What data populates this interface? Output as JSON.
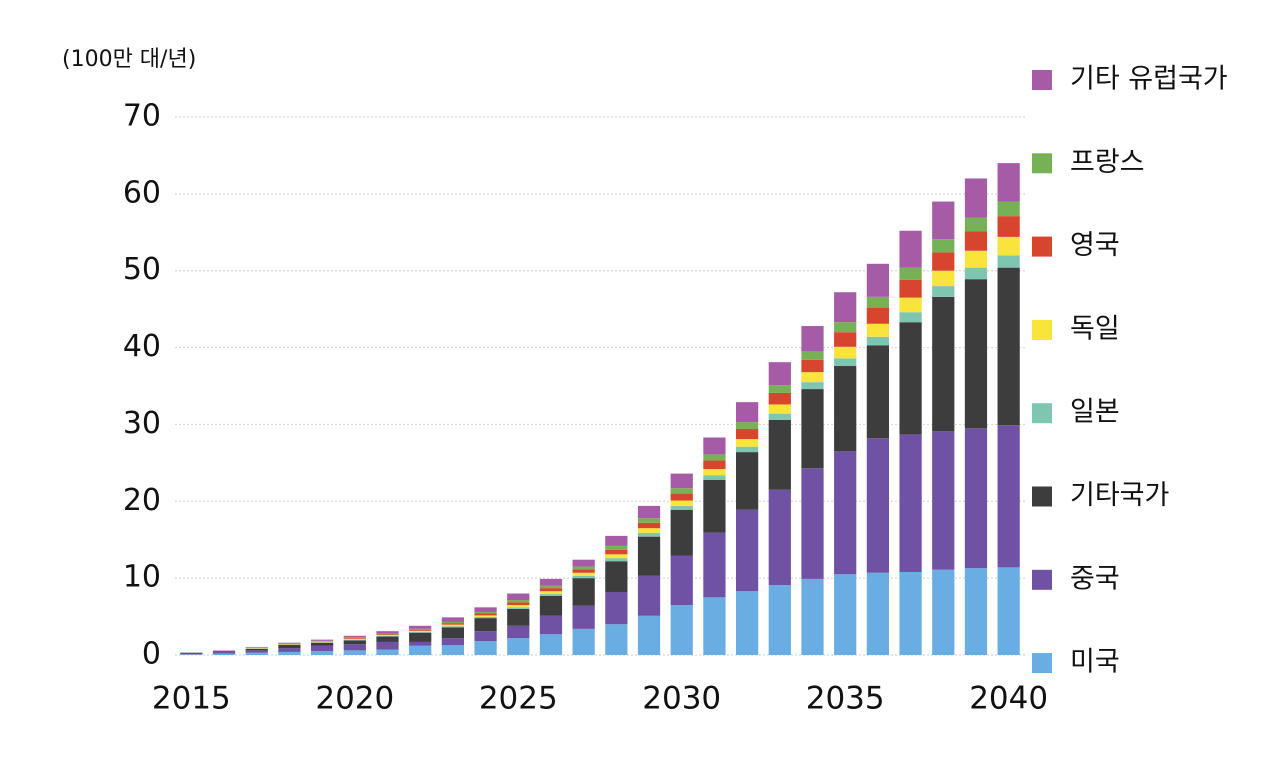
{
  "chart_data": {
    "type": "stacked_bar",
    "y_axis_label": "(100만 대/년)",
    "categories": [
      "2015",
      null,
      null,
      null,
      null,
      "2020",
      null,
      null,
      null,
      null,
      "2025",
      null,
      null,
      null,
      null,
      "2030",
      null,
      null,
      null,
      null,
      "2035",
      null,
      null,
      null,
      null,
      "2040"
    ],
    "series": [
      {
        "name": "미국",
        "color": "#6aade2",
        "values": [
          0.1,
          0.2,
          0.3,
          0.4,
          0.5,
          0.6,
          0.7,
          1.2,
          1.3,
          1.8,
          2.2,
          2.7,
          3.4,
          4.0,
          5.1,
          6.5,
          7.5,
          8.3,
          9.1,
          9.9,
          10.5,
          10.7,
          10.8,
          11.1,
          11.3,
          11.4
        ]
      },
      {
        "name": "중국",
        "color": "#6f52a3",
        "values": [
          0.1,
          0.2,
          0.3,
          0.5,
          0.7,
          0.8,
          1.0,
          0.5,
          0.9,
          1.3,
          1.6,
          2.4,
          3.0,
          4.2,
          5.2,
          6.4,
          8.4,
          10.6,
          12.4,
          14.4,
          16.0,
          17.5,
          17.9,
          18.0,
          18.2,
          18.5
        ]
      },
      {
        "name": "기타국가",
        "color": "#3d3d3d",
        "values": [
          0.1,
          0.1,
          0.2,
          0.4,
          0.4,
          0.5,
          0.7,
          1.2,
          1.4,
          1.7,
          2.2,
          2.6,
          3.6,
          4.0,
          5.1,
          6.0,
          6.9,
          7.5,
          9.1,
          10.3,
          11.1,
          12.1,
          14.6,
          17.5,
          19.4,
          20.5
        ]
      },
      {
        "name": "일본",
        "color": "#7fc6b1",
        "values": [
          0,
          0,
          0.05,
          0.05,
          0.05,
          0.1,
          0.1,
          0.1,
          0.15,
          0.15,
          0.2,
          0.25,
          0.3,
          0.4,
          0.5,
          0.5,
          0.6,
          0.7,
          0.8,
          0.9,
          1.0,
          1.1,
          1.3,
          1.4,
          1.5,
          1.6
        ]
      },
      {
        "name": "독일",
        "color": "#f8e43b",
        "values": [
          0,
          0,
          0.05,
          0.05,
          0.1,
          0.1,
          0.1,
          0.15,
          0.2,
          0.2,
          0.3,
          0.35,
          0.4,
          0.5,
          0.6,
          0.7,
          0.8,
          1.0,
          1.2,
          1.3,
          1.5,
          1.7,
          1.9,
          2.0,
          2.2,
          2.4
        ]
      },
      {
        "name": "영국",
        "color": "#d8452f",
        "values": [
          0,
          0.02,
          0.05,
          0.05,
          0.05,
          0.1,
          0.1,
          0.15,
          0.2,
          0.25,
          0.35,
          0.4,
          0.45,
          0.6,
          0.7,
          0.9,
          1.1,
          1.3,
          1.5,
          1.6,
          1.9,
          2.1,
          2.3,
          2.4,
          2.5,
          2.7
        ]
      },
      {
        "name": "프랑스",
        "color": "#76b255",
        "values": [
          0,
          0.02,
          0.05,
          0.05,
          0.05,
          0.1,
          0.1,
          0.1,
          0.15,
          0.2,
          0.3,
          0.3,
          0.35,
          0.5,
          0.6,
          0.7,
          0.8,
          0.9,
          1.0,
          1.1,
          1.3,
          1.4,
          1.6,
          1.7,
          1.8,
          1.9
        ]
      },
      {
        "name": "기타 유럽국가",
        "color": "#a55ba6",
        "values": [
          0,
          0.06,
          0.05,
          0.1,
          0.15,
          0.2,
          0.3,
          0.4,
          0.6,
          0.6,
          0.85,
          0.9,
          0.9,
          1.3,
          1.6,
          1.9,
          2.2,
          2.6,
          3.0,
          3.3,
          3.9,
          4.3,
          4.8,
          4.9,
          5.1,
          5.0
        ]
      }
    ],
    "ylim": [
      0,
      70
    ],
    "yticks": [
      0,
      10,
      20,
      30,
      40,
      50,
      60,
      70
    ],
    "grid": true,
    "legend": "right"
  }
}
